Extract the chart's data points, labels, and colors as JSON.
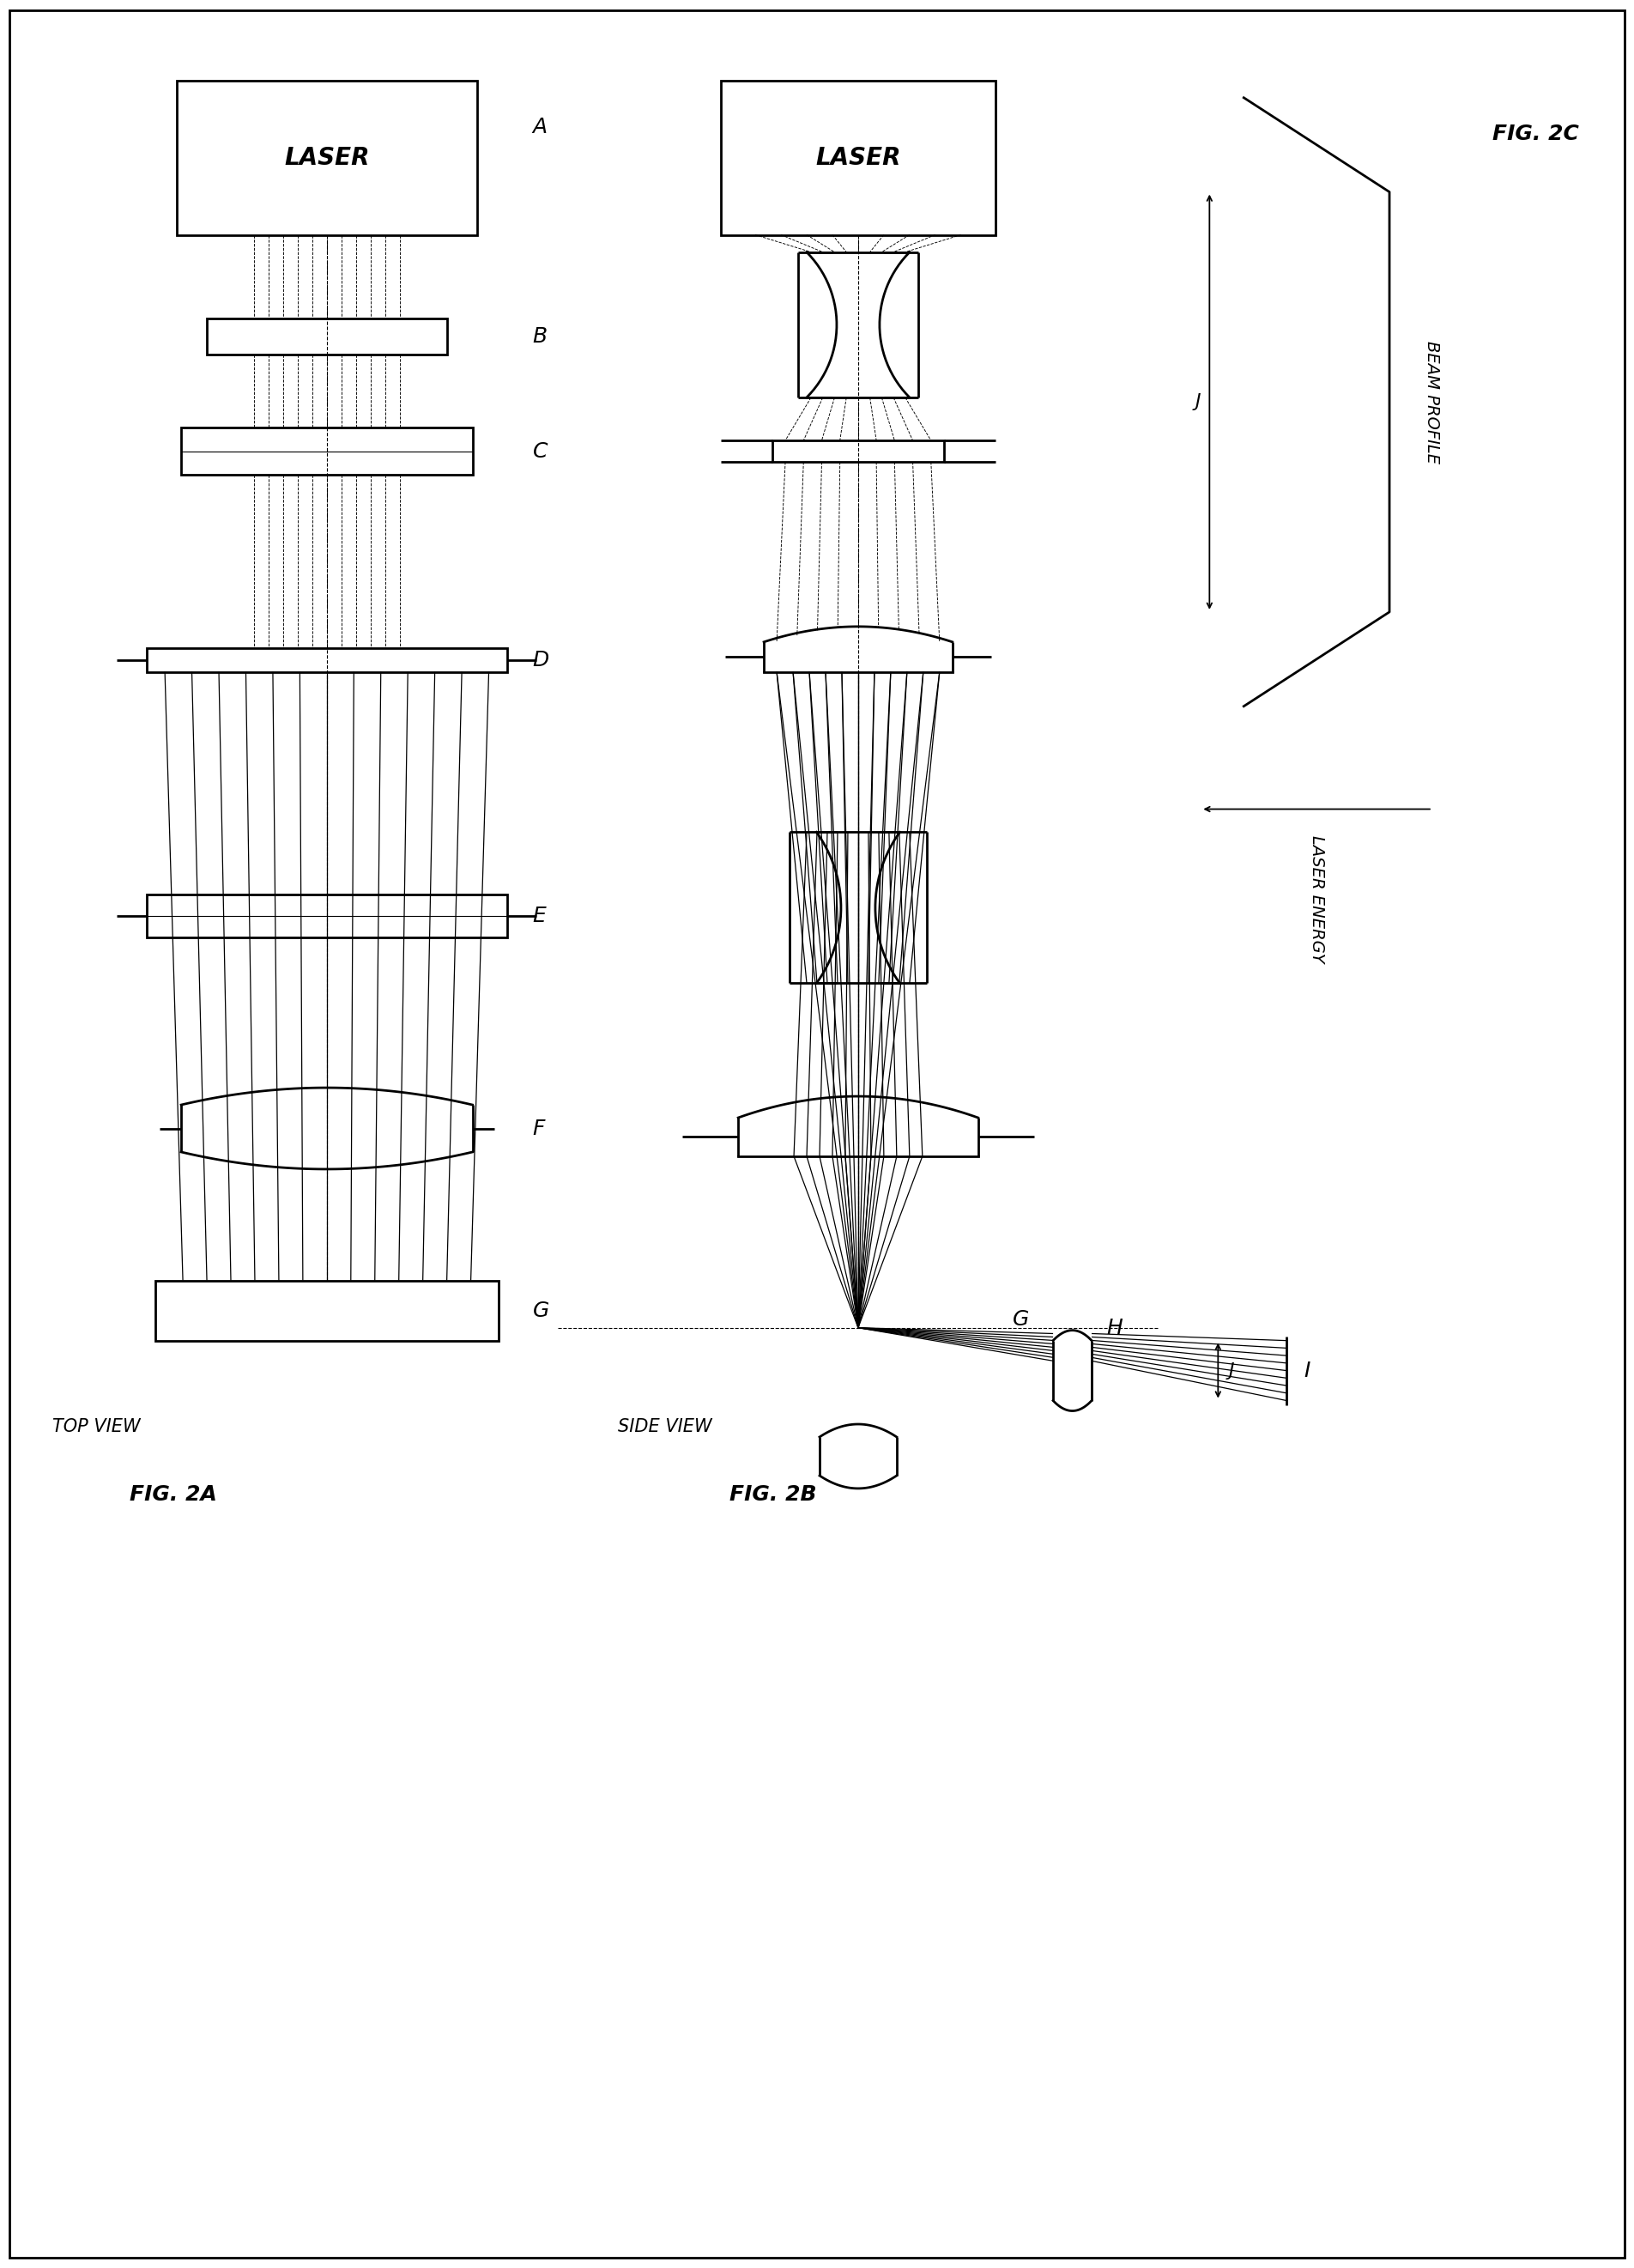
{
  "bg_color": "#ffffff",
  "line_color": "#000000",
  "fig_width": 19.04,
  "fig_height": 26.42,
  "fig2a_label": "FIG. 2A",
  "fig2b_label": "FIG. 2B",
  "fig2c_label": "FIG. 2C",
  "top_view_label": "TOP VIEW",
  "side_view_label": "SIDE VIEW",
  "laser_label": "LASER",
  "beam_profile_label": "BEAM PROFILE",
  "laser_energy_label": "LASER ENERGY",
  "label_A": "A",
  "label_B": "B",
  "label_C": "C",
  "label_D": "D",
  "label_E": "E",
  "label_F": "F",
  "label_G": "G",
  "label_H": "H",
  "label_I": "I",
  "label_J": "J"
}
